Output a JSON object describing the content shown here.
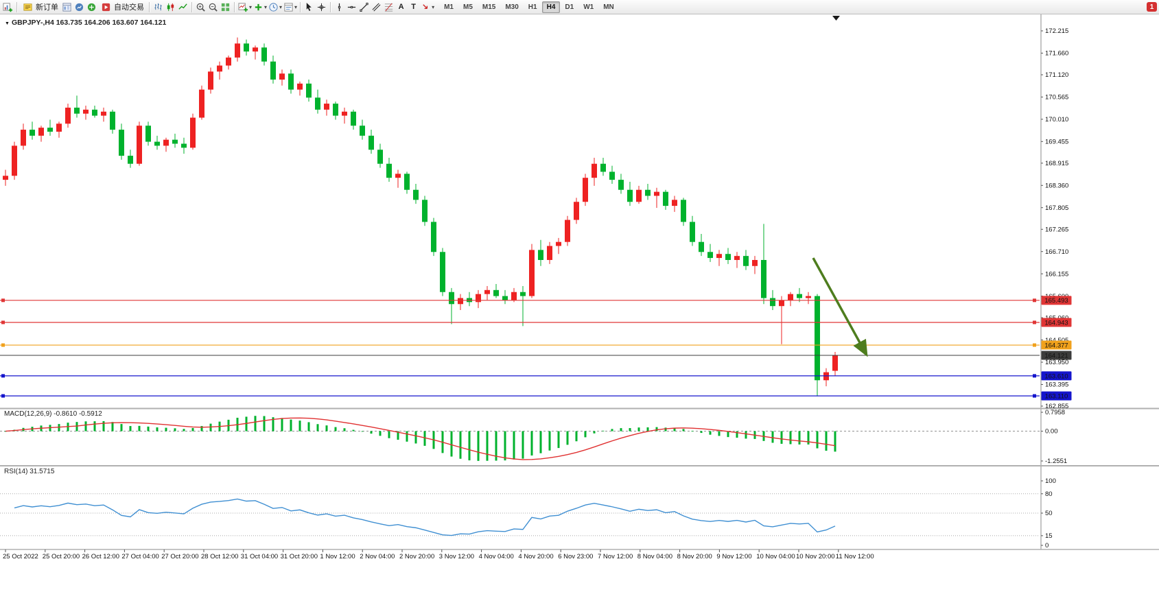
{
  "toolbar": {
    "new_order_label": "新订单",
    "autotrade_label": "自动交易",
    "timeframes": [
      "M1",
      "M5",
      "M15",
      "M30",
      "H1",
      "H4",
      "D1",
      "W1",
      "MN"
    ],
    "active_timeframe": "H4",
    "notification_badge": "1"
  },
  "chart": {
    "header": "GBPJPY-,H4 163.735 164.206 163.607 164.121",
    "symbol": "GBPJPY-",
    "period": "H4",
    "ohlc": {
      "open": "163.735",
      "high": "164.206",
      "low": "163.607",
      "close": "164.121"
    }
  },
  "chart_data": {
    "type": "candlestick",
    "symbol": "GBPJPY-",
    "timeframe": "H4",
    "price_max": 172.215,
    "price_min": 162.855,
    "price_axis_labels": [
      "172.215",
      "171.660",
      "171.120",
      "170.565",
      "170.010",
      "169.455",
      "168.915",
      "168.360",
      "167.805",
      "167.265",
      "166.710",
      "166.155",
      "165.600",
      "165.060",
      "164.505",
      "163.950",
      "163.395",
      "162.855"
    ],
    "colors": {
      "bull": "#ee2222",
      "bear": "#00b22d",
      "background": "#ffffff",
      "axis_text": "#111111"
    },
    "candles": [
      [
        168.5,
        168.75,
        168.35,
        168.6
      ],
      [
        168.6,
        169.45,
        168.5,
        169.35
      ],
      [
        169.35,
        169.9,
        169.25,
        169.75
      ],
      [
        169.75,
        169.95,
        169.5,
        169.6
      ],
      [
        169.6,
        169.85,
        169.45,
        169.8
      ],
      [
        169.8,
        170.0,
        169.6,
        169.7
      ],
      [
        169.7,
        169.95,
        169.55,
        169.9
      ],
      [
        169.9,
        170.4,
        169.8,
        170.3
      ],
      [
        170.3,
        170.6,
        170.05,
        170.15
      ],
      [
        170.15,
        170.35,
        170.0,
        170.25
      ],
      [
        170.25,
        170.35,
        170.05,
        170.1
      ],
      [
        170.1,
        170.3,
        169.95,
        170.2
      ],
      [
        170.2,
        170.25,
        169.65,
        169.75
      ],
      [
        169.75,
        169.9,
        169.0,
        169.1
      ],
      [
        169.1,
        169.25,
        168.8,
        168.9
      ],
      [
        168.9,
        169.95,
        168.85,
        169.85
      ],
      [
        169.85,
        169.95,
        169.35,
        169.45
      ],
      [
        169.45,
        169.6,
        169.25,
        169.35
      ],
      [
        169.35,
        169.55,
        169.2,
        169.5
      ],
      [
        169.5,
        169.65,
        169.3,
        169.4
      ],
      [
        169.4,
        169.55,
        169.15,
        169.3
      ],
      [
        169.3,
        170.15,
        169.25,
        170.05
      ],
      [
        170.05,
        170.85,
        170.0,
        170.75
      ],
      [
        170.75,
        171.3,
        170.65,
        171.2
      ],
      [
        171.2,
        171.45,
        171.0,
        171.35
      ],
      [
        171.35,
        171.6,
        171.25,
        171.55
      ],
      [
        171.55,
        172.05,
        171.45,
        171.9
      ],
      [
        171.9,
        172.0,
        171.6,
        171.7
      ],
      [
        171.7,
        171.85,
        171.5,
        171.8
      ],
      [
        171.8,
        171.9,
        171.35,
        171.45
      ],
      [
        171.45,
        171.6,
        170.9,
        171.0
      ],
      [
        171.0,
        171.25,
        170.85,
        171.15
      ],
      [
        171.15,
        171.25,
        170.65,
        170.75
      ],
      [
        170.75,
        170.95,
        170.6,
        170.9
      ],
      [
        170.9,
        171.0,
        170.45,
        170.55
      ],
      [
        170.55,
        170.75,
        170.15,
        170.25
      ],
      [
        170.25,
        170.5,
        170.1,
        170.4
      ],
      [
        170.4,
        170.45,
        170.0,
        170.1
      ],
      [
        170.1,
        170.3,
        169.9,
        170.2
      ],
      [
        170.2,
        170.25,
        169.75,
        169.85
      ],
      [
        169.85,
        170.0,
        169.5,
        169.6
      ],
      [
        169.6,
        169.75,
        169.15,
        169.25
      ],
      [
        169.25,
        169.4,
        168.8,
        168.9
      ],
      [
        168.9,
        169.05,
        168.45,
        168.55
      ],
      [
        168.55,
        168.75,
        168.3,
        168.65
      ],
      [
        168.65,
        168.7,
        168.15,
        168.25
      ],
      [
        168.25,
        168.4,
        167.9,
        168.0
      ],
      [
        168.0,
        168.1,
        167.35,
        167.45
      ],
      [
        167.45,
        167.55,
        166.6,
        166.7
      ],
      [
        166.7,
        166.8,
        165.6,
        165.7
      ],
      [
        165.7,
        165.8,
        164.9,
        165.4
      ],
      [
        165.4,
        165.65,
        165.25,
        165.55
      ],
      [
        165.55,
        165.7,
        165.35,
        165.45
      ],
      [
        165.45,
        165.75,
        165.3,
        165.65
      ],
      [
        165.65,
        165.85,
        165.5,
        165.75
      ],
      [
        165.75,
        165.9,
        165.55,
        165.6
      ],
      [
        165.6,
        165.75,
        165.4,
        165.5
      ],
      [
        165.5,
        165.8,
        165.45,
        165.7
      ],
      [
        165.7,
        165.85,
        164.85,
        165.6
      ],
      [
        165.6,
        166.9,
        165.55,
        166.75
      ],
      [
        166.75,
        167.0,
        166.35,
        166.5
      ],
      [
        166.5,
        166.95,
        166.4,
        166.85
      ],
      [
        166.85,
        167.05,
        166.65,
        166.95
      ],
      [
        166.95,
        167.6,
        166.85,
        167.5
      ],
      [
        167.5,
        168.05,
        167.4,
        167.95
      ],
      [
        167.95,
        168.65,
        167.85,
        168.55
      ],
      [
        168.55,
        169.05,
        168.35,
        168.9
      ],
      [
        168.9,
        169.05,
        168.6,
        168.7
      ],
      [
        168.7,
        168.85,
        168.4,
        168.5
      ],
      [
        168.5,
        168.65,
        168.15,
        168.25
      ],
      [
        168.25,
        168.45,
        167.85,
        167.95
      ],
      [
        167.95,
        168.35,
        167.9,
        168.25
      ],
      [
        168.25,
        168.4,
        168.0,
        168.1
      ],
      [
        168.1,
        168.3,
        167.8,
        168.2
      ],
      [
        168.2,
        168.25,
        167.75,
        167.85
      ],
      [
        167.85,
        168.1,
        167.7,
        168.0
      ],
      [
        168.0,
        168.05,
        167.35,
        167.45
      ],
      [
        167.45,
        167.6,
        166.85,
        166.95
      ],
      [
        166.95,
        167.15,
        166.6,
        166.7
      ],
      [
        166.7,
        166.9,
        166.45,
        166.55
      ],
      [
        166.55,
        166.75,
        166.35,
        166.65
      ],
      [
        166.65,
        166.8,
        166.4,
        166.5
      ],
      [
        166.5,
        166.7,
        166.3,
        166.6
      ],
      [
        166.6,
        166.75,
        166.25,
        166.35
      ],
      [
        166.35,
        166.6,
        166.15,
        166.5
      ],
      [
        166.5,
        167.4,
        165.4,
        165.55
      ],
      [
        165.55,
        165.75,
        165.25,
        165.35
      ],
      [
        165.35,
        165.6,
        164.4,
        165.5
      ],
      [
        165.5,
        165.7,
        165.35,
        165.65
      ],
      [
        165.65,
        165.8,
        165.45,
        165.55
      ],
      [
        165.55,
        165.7,
        165.4,
        165.6
      ],
      [
        165.6,
        165.65,
        163.1,
        163.5
      ],
      [
        163.5,
        163.8,
        163.35,
        163.7
      ],
      [
        163.735,
        164.206,
        163.607,
        164.121
      ]
    ],
    "levels": [
      {
        "price": 165.493,
        "label": "165.493",
        "color": "#e03636",
        "type": "horizontal-line"
      },
      {
        "price": 164.943,
        "label": "164.943",
        "color": "#e03636",
        "type": "horizontal-line"
      },
      {
        "price": 164.377,
        "label": "164.377",
        "color": "#f0a11c",
        "type": "horizontal-line"
      },
      {
        "price": 163.61,
        "label": "163.610",
        "color": "#1515cc",
        "type": "horizontal-line"
      },
      {
        "price": 163.11,
        "label": "163.110",
        "color": "#1515cc",
        "type": "horizontal-line"
      }
    ],
    "bid_line": {
      "price": 164.121,
      "label": "164.121",
      "color": "#3c3c3c"
    },
    "annotation_arrow": {
      "from_price": 166.55,
      "to_price": 164.16,
      "color": "#4e7d1e"
    },
    "time_axis_labels": [
      "25 Oct 2022",
      "25 Oct 20:00",
      "26 Oct 12:00",
      "27 Oct 04:00",
      "27 Oct 20:00",
      "28 Oct 12:00",
      "31 Oct 04:00",
      "31 Oct 20:00",
      "1 Nov 12:00",
      "2 Nov 04:00",
      "2 Nov 20:00",
      "3 Nov 12:00",
      "4 Nov 04:00",
      "4 Nov 20:00",
      "6 Nov 23:00",
      "7 Nov 12:00",
      "8 Nov 04:00",
      "8 Nov 20:00",
      "9 Nov 12:00",
      "10 Nov 04:00",
      "10 Nov 20:00",
      "11 Nov 12:00"
    ],
    "macd": {
      "label": "MACD(12,26,9) -0.8610 -0.5912",
      "params": [
        12,
        26,
        9
      ],
      "value": -0.861,
      "signal_value": -0.5912,
      "axis_labels": [
        "0.7958",
        "0.00",
        "-1.2551"
      ],
      "max": 0.7958,
      "min": -1.2551,
      "histogram_color": "#00b22d",
      "signal_color": "#e03131"
    },
    "rsi": {
      "label": "RSI(14) 31.5715",
      "period": 14,
      "value": 31.5715,
      "axis_labels": [
        "100",
        "80",
        "50",
        "15",
        "0"
      ],
      "levels": [
        80,
        50,
        15
      ],
      "line_color": "#3f8fd2"
    }
  }
}
